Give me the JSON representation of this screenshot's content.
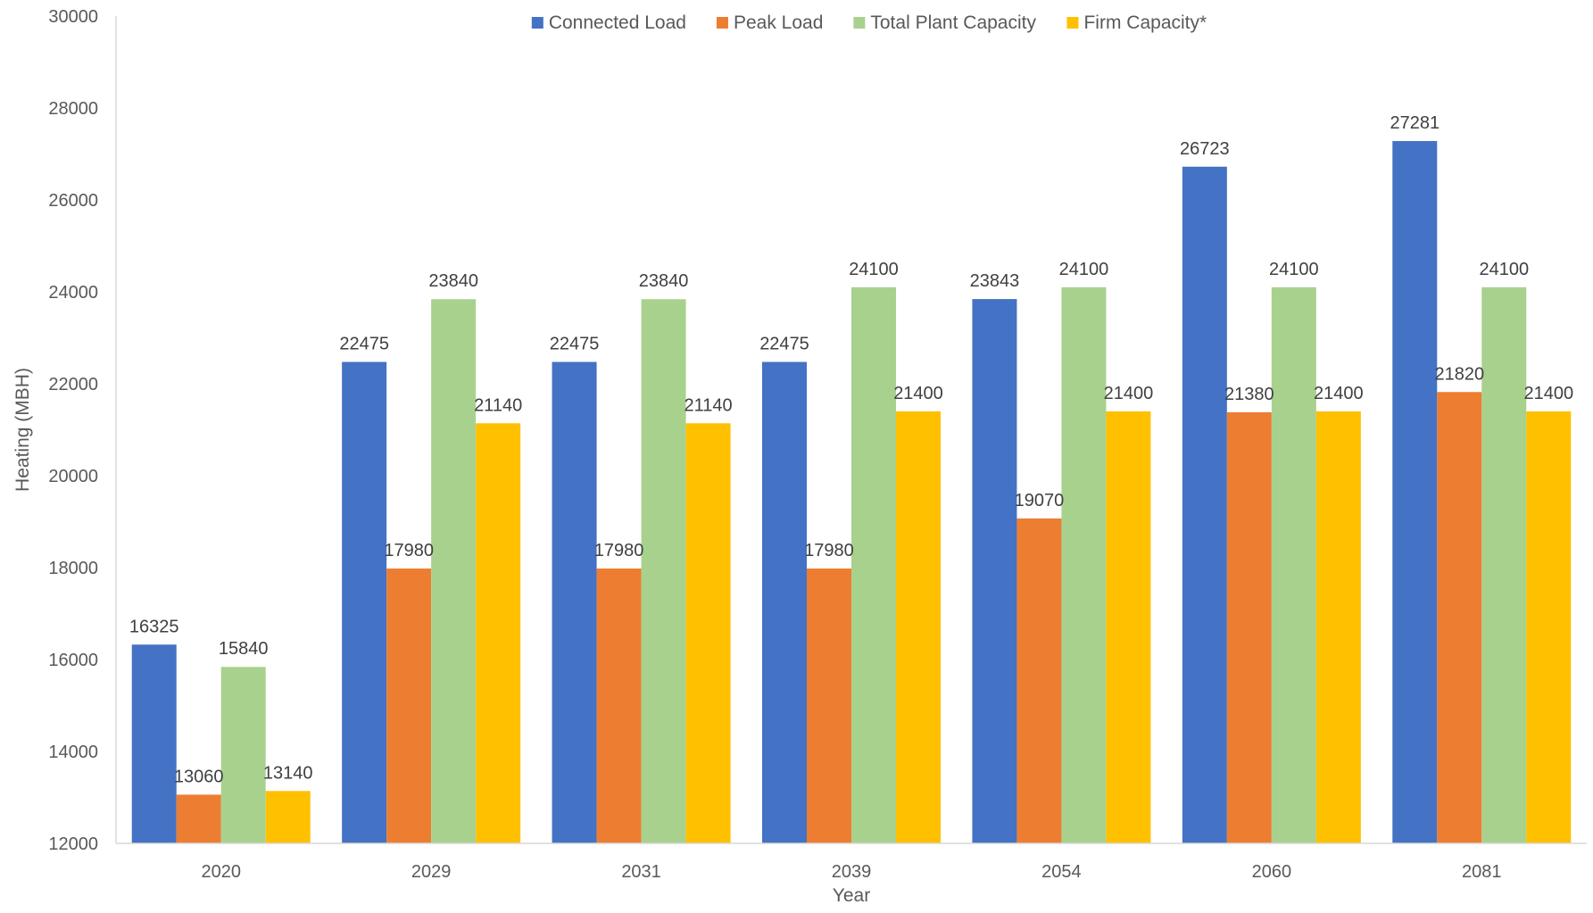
{
  "chart_data": {
    "type": "bar",
    "title": "",
    "xlabel": "Year",
    "ylabel": "Heating (MBH)",
    "ylim": [
      12000,
      30000
    ],
    "ytick_step": 2000,
    "grid": false,
    "legend_position": "top-center",
    "categories": [
      "2020",
      "2029",
      "2031",
      "2039",
      "2054",
      "2060",
      "2081"
    ],
    "series": [
      {
        "name": "Connected Load",
        "color": "#4472c4",
        "values": [
          16325,
          22475,
          22475,
          22475,
          23843,
          26723,
          27281
        ]
      },
      {
        "name": "Peak Load",
        "color": "#ed7d31",
        "values": [
          13060,
          17980,
          17980,
          17980,
          19070,
          21380,
          21820
        ]
      },
      {
        "name": "Total Plant Capacity",
        "color": "#a9d18e",
        "values": [
          15840,
          23840,
          23840,
          24100,
          24100,
          24100,
          24100
        ]
      },
      {
        "name": "Firm Capacity*",
        "color": "#ffc000",
        "values": [
          13140,
          21140,
          21140,
          21400,
          21400,
          21400,
          21400
        ]
      }
    ]
  }
}
